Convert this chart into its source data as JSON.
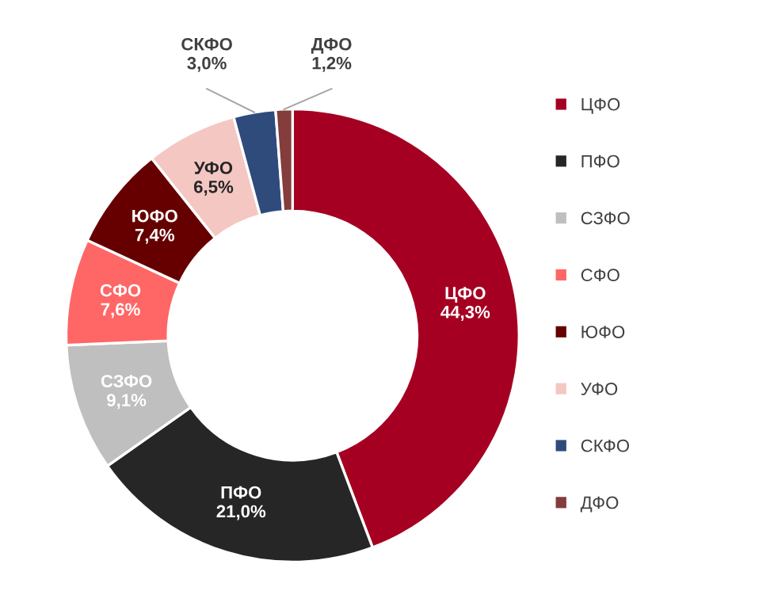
{
  "chart_data": {
    "type": "donut",
    "categories": [
      "ЦФО",
      "ПФО",
      "СЗФО",
      "СФО",
      "ЮФО",
      "УФО",
      "СКФО",
      "ДФО"
    ],
    "values": [
      44.3,
      21.0,
      9.1,
      7.6,
      7.4,
      6.5,
      3.0,
      1.2
    ],
    "value_labels": [
      "44,3%",
      "21,0%",
      "9,1%",
      "7,6%",
      "7,4%",
      "6,5%",
      "3,0%",
      "1,2%"
    ],
    "colors": [
      "#a50021",
      "#262626",
      "#bfbfbf",
      "#ff6666",
      "#660000",
      "#f4c7c3",
      "#2e4b7c",
      "#843c3c"
    ],
    "legend": "right"
  }
}
